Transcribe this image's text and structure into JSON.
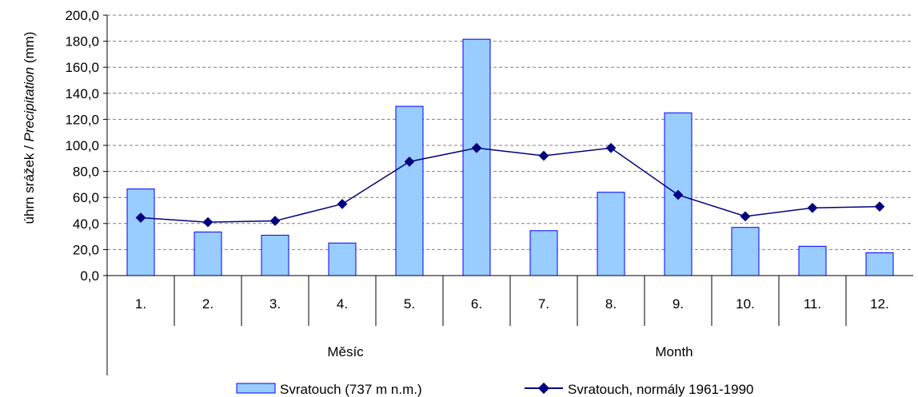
{
  "chart_data": {
    "type": "bar",
    "ylabel": {
      "main": "úhrn srážek / ",
      "italic": "Precipitation",
      "unit": " (mm)"
    },
    "ylim": [
      0,
      200
    ],
    "ytick_labels": [
      "0,0",
      "20,0",
      "40,0",
      "60,0",
      "80,0",
      "100,0",
      "120,0",
      "140,0",
      "160,0",
      "180,0",
      "200,0"
    ],
    "categories": [
      "1.",
      "2.",
      "3.",
      "4.",
      "5.",
      "6.",
      "7.",
      "8.",
      "9.",
      "10.",
      "11.",
      "12."
    ],
    "group_labels": [
      "Měsíc",
      "Month"
    ],
    "grid": true,
    "legend_position": "bottom",
    "series": [
      {
        "name": "Svratouch (737 m n.m.)",
        "kind": "bar",
        "values": [
          66.5,
          33.5,
          31.0,
          25.0,
          130.0,
          181.5,
          34.5,
          64.0,
          125.0,
          37.0,
          22.5,
          17.5
        ],
        "color": "#99CCFF",
        "stroke": "#0000FF"
      },
      {
        "name": "Svratouch, normály 1961-1990",
        "kind": "line",
        "values": [
          44.5,
          41.0,
          42.0,
          55.0,
          87.5,
          98.0,
          92.0,
          98.0,
          62.0,
          45.5,
          52.0,
          53.0
        ],
        "color": "#000080"
      }
    ]
  }
}
